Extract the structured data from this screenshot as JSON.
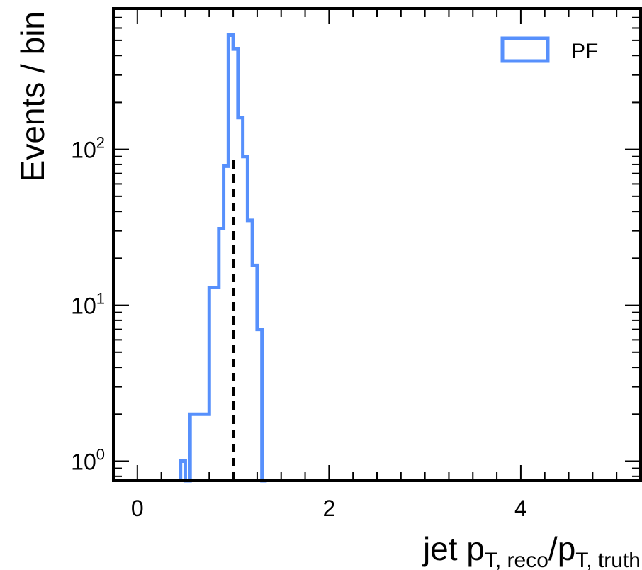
{
  "chart_data": {
    "type": "histogram",
    "title": "",
    "xlabel": {
      "base": "jet p",
      "sub1": "T, reco",
      "slash": "/p",
      "sub2": "T, truth"
    },
    "ylabel": "Events / bin",
    "x_range": [
      -0.25,
      5.25
    ],
    "y_scale": "log",
    "y_range": [
      0.75,
      800
    ],
    "x_ticks": [
      0,
      2,
      4
    ],
    "x_tick_labels": [
      "0",
      "2",
      "4"
    ],
    "y_ticks": [
      1,
      10,
      100
    ],
    "y_tick_labels": [
      {
        "base": "10",
        "exp": "0"
      },
      {
        "base": "10",
        "exp": "1"
      },
      {
        "base": "10",
        "exp": "2"
      }
    ],
    "reference_line": {
      "x": 1.0,
      "y_top": 90,
      "style": "dashed",
      "color": "#000000"
    },
    "legend": {
      "position": "top-right"
    },
    "series": [
      {
        "name": "PF",
        "color": "#5790fc",
        "style": "step",
        "bin_edges": [
          0.45,
          0.5,
          0.55,
          0.6,
          0.65,
          0.7,
          0.75,
          0.8,
          0.85,
          0.9,
          0.95,
          1.0,
          1.05,
          1.1,
          1.15,
          1.2,
          1.25,
          1.3,
          1.35
        ],
        "counts": [
          1,
          0,
          2,
          2,
          2,
          2,
          13,
          13,
          31,
          78,
          540,
          440,
          160,
          90,
          35,
          18,
          7,
          0
        ]
      }
    ]
  }
}
